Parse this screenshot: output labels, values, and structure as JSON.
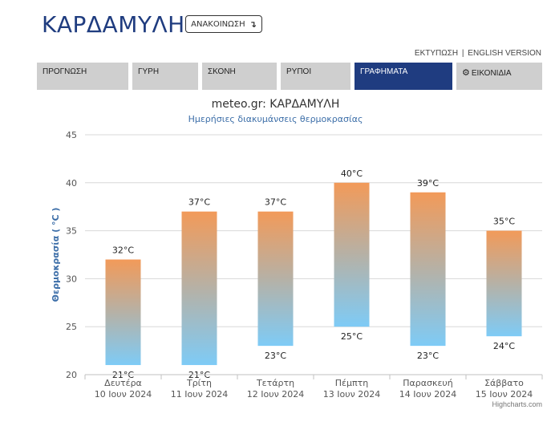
{
  "header": {
    "title": "ΚΑΡΔΑΜΥΛΗ",
    "announce_label": "ΑΝΑΚΟΙΝΩΣΗ",
    "announce_icon": "↴"
  },
  "top_links": {
    "print": "ΕΚΤΥΠΩΣΗ",
    "separator": "|",
    "english": "ENGLISH VERSION"
  },
  "tabs": [
    {
      "label": "ΠΡΟΓΝΩΣΗ",
      "active": false
    },
    {
      "label": "ΓΥΡΗ",
      "active": false
    },
    {
      "label": "ΣΚΟΝΗ",
      "active": false
    },
    {
      "label": "ΡΥΠΟΙ",
      "active": false
    },
    {
      "label": "ΓΡΑΦΗΜΑΤΑ",
      "active": true
    },
    {
      "label": "ΕΙΚΟΝΙΔΙΑ",
      "active": false,
      "icon": "gear-icon"
    }
  ],
  "chart_data": {
    "type": "bar",
    "subtype": "columnrange",
    "title": "meteo.gr: ΚΑΡΔΑΜΥΛΗ",
    "subtitle": "Ημερήσιες διακυμάνσεις θερμοκρασίας",
    "ylabel": "Θερμοκρασία ( °C )",
    "xlabel": "",
    "ylim": [
      20,
      45
    ],
    "yticks": [
      20,
      25,
      30,
      35,
      40,
      45
    ],
    "grid": true,
    "categories": [
      {
        "day": "Δευτέρα",
        "date": "10 Ιουν 2024"
      },
      {
        "day": "Τρίτη",
        "date": "11 Ιουν 2024"
      },
      {
        "day": "Τετάρτη",
        "date": "12 Ιουν 2024"
      },
      {
        "day": "Πέμπτη",
        "date": "13 Ιουν 2024"
      },
      {
        "day": "Παρασκευή",
        "date": "14 Ιουν 2024"
      },
      {
        "day": "Σάββατο",
        "date": "15 Ιουν 2024"
      }
    ],
    "low": [
      21,
      21,
      23,
      25,
      23,
      24
    ],
    "high": [
      32,
      37,
      37,
      40,
      39,
      35
    ],
    "low_labels": [
      "21°C",
      "21°C",
      "23°C",
      "25°C",
      "23°C",
      "24°C"
    ],
    "high_labels": [
      "32°C",
      "37°C",
      "37°C",
      "40°C",
      "39°C",
      "35°C"
    ],
    "colors": {
      "warm": "#f29a59",
      "cool": "#7ecbf6",
      "grid": "#d8d8d8",
      "axis_title": "#3c6ea8"
    }
  },
  "credits": "Highcharts.com"
}
